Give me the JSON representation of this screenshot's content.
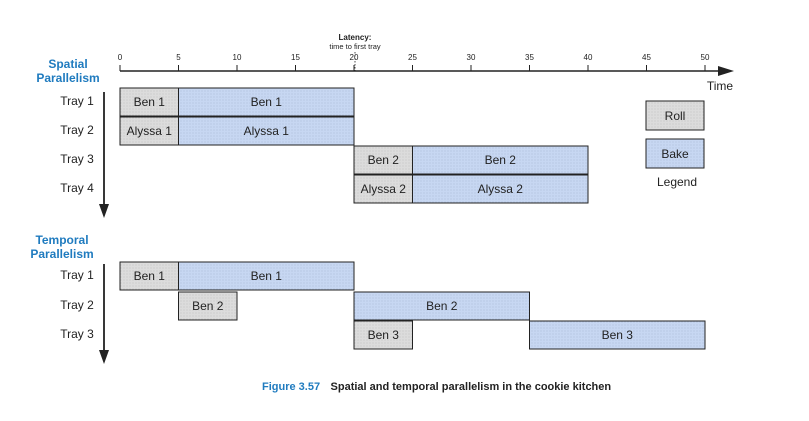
{
  "chart_data": {
    "type": "gantt",
    "axis": {
      "x_min": 0,
      "x_max": 50,
      "ticks": [
        0,
        5,
        10,
        15,
        20,
        25,
        30,
        35,
        40,
        45,
        50
      ],
      "tick_labels": [
        "0",
        "5",
        "10",
        "15",
        "20",
        "25",
        "30",
        "35",
        "40",
        "45",
        "50"
      ],
      "label": "Time",
      "latency_title": "Latency:",
      "latency_subtitle": "time to first tray"
    },
    "colors": {
      "roll": "#dcdcdc",
      "bake": "#c7d7f2",
      "accent": "#1f7bbf"
    },
    "legend": {
      "title": "Legend",
      "items": [
        {
          "label": "Roll",
          "kind": "roll"
        },
        {
          "label": "Bake",
          "kind": "bake"
        }
      ]
    },
    "sections": [
      {
        "title_line1": "Spatial",
        "title_line2": "Parallelism",
        "trays": [
          {
            "label": "Tray 1",
            "tasks": [
              {
                "label": "Ben 1",
                "kind": "roll",
                "start": 0,
                "end": 5
              },
              {
                "label": "Ben 1",
                "kind": "bake",
                "start": 5,
                "end": 20
              }
            ]
          },
          {
            "label": "Tray 2",
            "tasks": [
              {
                "label": "Alyssa 1",
                "kind": "roll",
                "start": 0,
                "end": 5
              },
              {
                "label": "Alyssa 1",
                "kind": "bake",
                "start": 5,
                "end": 20
              }
            ]
          },
          {
            "label": "Tray 3",
            "tasks": [
              {
                "label": "Ben 2",
                "kind": "roll",
                "start": 20,
                "end": 25
              },
              {
                "label": "Ben 2",
                "kind": "bake",
                "start": 25,
                "end": 40
              }
            ]
          },
          {
            "label": "Tray 4",
            "tasks": [
              {
                "label": "Alyssa 2",
                "kind": "roll",
                "start": 20,
                "end": 25
              },
              {
                "label": "Alyssa 2",
                "kind": "bake",
                "start": 25,
                "end": 40
              }
            ]
          }
        ]
      },
      {
        "title_line1": "Temporal",
        "title_line2": "Parallelism",
        "trays": [
          {
            "label": "Tray 1",
            "tasks": [
              {
                "label": "Ben 1",
                "kind": "roll",
                "start": 0,
                "end": 5
              },
              {
                "label": "Ben 1",
                "kind": "bake",
                "start": 5,
                "end": 20
              }
            ]
          },
          {
            "label": "Tray 2",
            "tasks": [
              {
                "label": "Ben 2",
                "kind": "roll",
                "start": 5,
                "end": 10
              },
              {
                "label": "Ben 2",
                "kind": "bake",
                "start": 20,
                "end": 35
              }
            ]
          },
          {
            "label": "Tray 3",
            "tasks": [
              {
                "label": "Ben 3",
                "kind": "roll",
                "start": 20,
                "end": 25
              },
              {
                "label": "Ben 3",
                "kind": "bake",
                "start": 35,
                "end": 50
              }
            ]
          }
        ]
      }
    ]
  },
  "caption": {
    "number": "Figure 3.57",
    "text": "Spatial and temporal parallelism in the cookie kitchen"
  }
}
